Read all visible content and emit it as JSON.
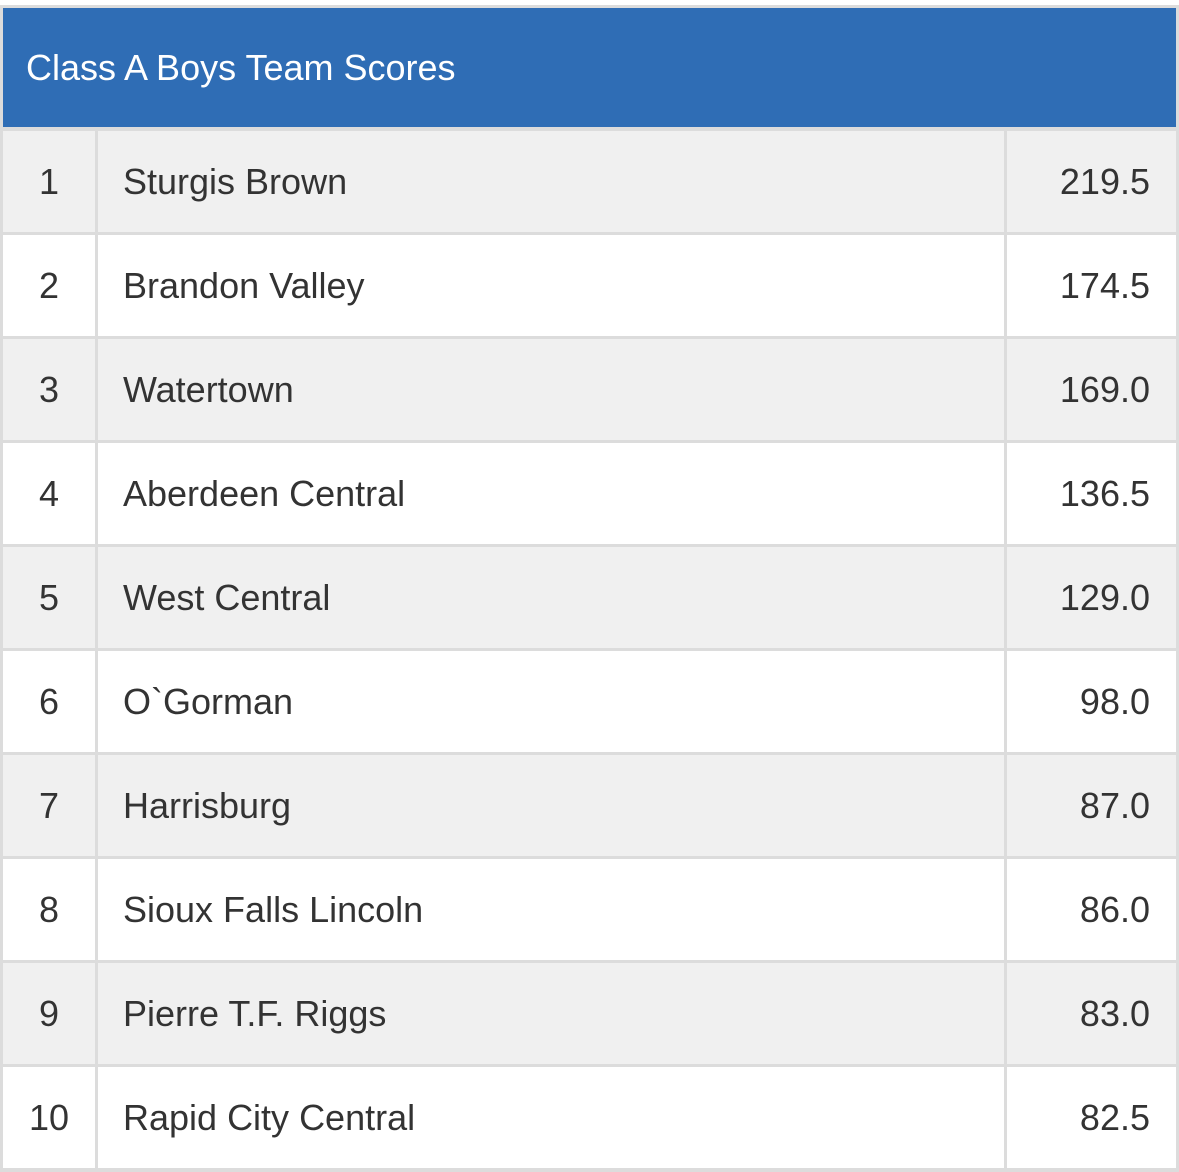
{
  "header": {
    "title": "Class A Boys Team Scores"
  },
  "table": {
    "rows": [
      [
        "1",
        "Sturgis Brown",
        "219.5"
      ],
      [
        "2",
        "Brandon Valley",
        "174.5"
      ],
      [
        "3",
        "Watertown",
        "169.0"
      ],
      [
        "4",
        "Aberdeen Central",
        "136.5"
      ],
      [
        "5",
        "West Central",
        "129.0"
      ],
      [
        "6",
        "O`Gorman",
        "98.0"
      ],
      [
        "7",
        "Harrisburg",
        "87.0"
      ],
      [
        "8",
        "Sioux Falls Lincoln",
        "86.0"
      ],
      [
        "9",
        "Pierre T.F. Riggs",
        "83.0"
      ],
      [
        "10",
        "Rapid City Central",
        "82.5"
      ]
    ]
  }
}
